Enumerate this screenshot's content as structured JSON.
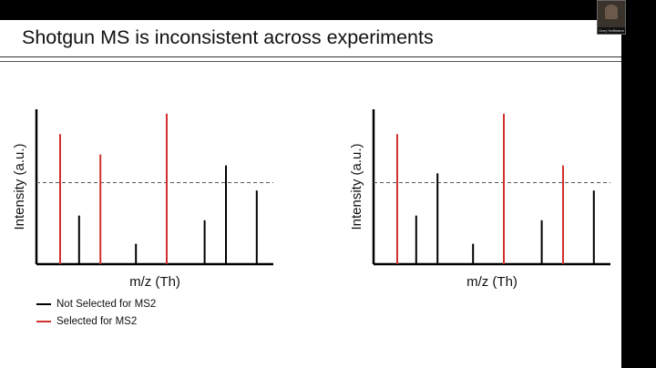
{
  "slide": {
    "title": "Shotgun MS is inconsistent across experiments"
  },
  "webcam": {
    "caption": "Ocey Hoffmann"
  },
  "legend": {
    "items": [
      {
        "label": "Not Selected for MS2",
        "color": "#000000"
      },
      {
        "label": "Selected for MS2",
        "color": "#d0312d"
      }
    ]
  },
  "chart_data": [
    {
      "type": "bar",
      "xlabel": "m/z (Th)",
      "ylabel": "Intensity (a.u.)",
      "threshold": 0.52,
      "ylim": [
        0,
        1
      ],
      "peaks": [
        {
          "x": 0.1,
          "value": 0.83,
          "selected": true
        },
        {
          "x": 0.18,
          "value": 0.31,
          "selected": false
        },
        {
          "x": 0.27,
          "value": 0.7,
          "selected": true
        },
        {
          "x": 0.42,
          "value": 0.13,
          "selected": false
        },
        {
          "x": 0.55,
          "value": 0.96,
          "selected": true
        },
        {
          "x": 0.71,
          "value": 0.28,
          "selected": false
        },
        {
          "x": 0.8,
          "value": 0.63,
          "selected": false
        },
        {
          "x": 0.93,
          "value": 0.47,
          "selected": false
        }
      ]
    },
    {
      "type": "bar",
      "xlabel": "m/z (Th)",
      "ylabel": "Intensity (a.u.)",
      "threshold": 0.52,
      "ylim": [
        0,
        1
      ],
      "peaks": [
        {
          "x": 0.1,
          "value": 0.83,
          "selected": true
        },
        {
          "x": 0.18,
          "value": 0.31,
          "selected": false
        },
        {
          "x": 0.27,
          "value": 0.58,
          "selected": false
        },
        {
          "x": 0.42,
          "value": 0.13,
          "selected": false
        },
        {
          "x": 0.55,
          "value": 0.96,
          "selected": true
        },
        {
          "x": 0.71,
          "value": 0.28,
          "selected": false
        },
        {
          "x": 0.8,
          "value": 0.63,
          "selected": true
        },
        {
          "x": 0.93,
          "value": 0.47,
          "selected": false
        }
      ]
    }
  ]
}
